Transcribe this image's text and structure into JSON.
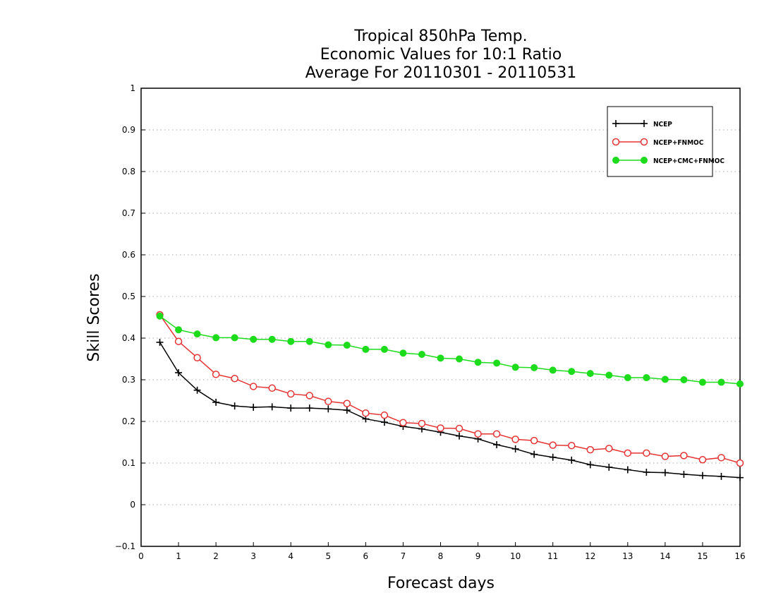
{
  "chart_data": {
    "type": "line",
    "title": [
      "Tropical 850hPa Temp.",
      "Economic Values for 10:1 Ratio",
      "Average For 20110301 - 20110531"
    ],
    "xlabel": "Forecast days",
    "ylabel": "Skill Scores",
    "xlim": [
      0,
      16
    ],
    "ylim": [
      -0.1,
      1
    ],
    "x_ticks": [
      "0",
      "1",
      "2",
      "3",
      "4",
      "5",
      "6",
      "7",
      "8",
      "9",
      "10",
      "11",
      "12",
      "13",
      "14",
      "15",
      "16"
    ],
    "y_ticks": [
      "−0.1",
      "0",
      "0.1",
      "0.2",
      "0.3",
      "0.4",
      "0.5",
      "0.6",
      "0.7",
      "0.8",
      "0.9",
      "1"
    ],
    "y_tick_values": [
      -0.1,
      0,
      0.1,
      0.2,
      0.3,
      0.4,
      0.5,
      0.6,
      0.7,
      0.8,
      0.9,
      1.0
    ],
    "grid": true,
    "legend_position": "top-right",
    "x": [
      0.5,
      1,
      1.5,
      2,
      2.5,
      3,
      3.5,
      4,
      4.5,
      5,
      5.5,
      6,
      6.5,
      7,
      7.5,
      8,
      8.5,
      9,
      9.5,
      10,
      10.5,
      11,
      11.5,
      12,
      12.5,
      13,
      13.5,
      14,
      14.5,
      15,
      15.5,
      16
    ],
    "series": [
      {
        "name": "NCEP",
        "color": "#000000",
        "marker": "plus",
        "values": [
          0.39,
          0.317,
          0.275,
          0.246,
          0.237,
          0.234,
          0.235,
          0.232,
          0.232,
          0.23,
          0.227,
          0.206,
          0.198,
          0.188,
          0.182,
          0.174,
          0.165,
          0.158,
          0.144,
          0.134,
          0.121,
          0.114,
          0.107,
          0.096,
          0.09,
          0.084,
          0.078,
          0.077,
          0.073,
          0.07,
          0.068,
          0.065
        ]
      },
      {
        "name": "NCEP+FNMOC",
        "color": "#e53333",
        "marker": "open-circle",
        "values": [
          0.456,
          0.392,
          0.353,
          0.313,
          0.303,
          0.284,
          0.28,
          0.266,
          0.262,
          0.248,
          0.243,
          0.22,
          0.215,
          0.197,
          0.195,
          0.184,
          0.183,
          0.17,
          0.17,
          0.157,
          0.154,
          0.143,
          0.142,
          0.132,
          0.135,
          0.124,
          0.124,
          0.116,
          0.118,
          0.108,
          0.113,
          0.1
        ]
      },
      {
        "name": "NCEP+CMC+FNMOC",
        "color": "#1cdc1c",
        "marker": "filled-circle",
        "values": [
          0.453,
          0.42,
          0.41,
          0.401,
          0.401,
          0.397,
          0.397,
          0.392,
          0.392,
          0.384,
          0.383,
          0.373,
          0.373,
          0.364,
          0.361,
          0.352,
          0.35,
          0.342,
          0.34,
          0.33,
          0.329,
          0.323,
          0.32,
          0.315,
          0.311,
          0.305,
          0.305,
          0.301,
          0.3,
          0.294,
          0.294,
          0.29
        ]
      }
    ]
  }
}
